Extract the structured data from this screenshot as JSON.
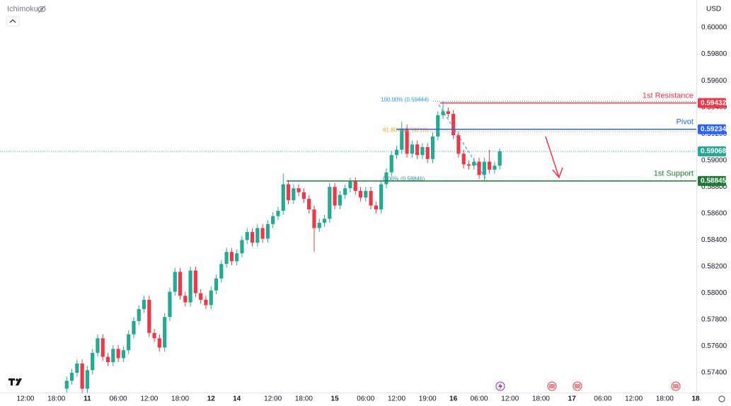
{
  "chart_data": {
    "type": "candlestick",
    "indicator": "Ichimoku",
    "currency": "USD",
    "up_color": "#22ab94",
    "down_color": "#f23645",
    "xlim": [
      -12.94,
      122.13
    ],
    "ylim": [
      0.57251,
      0.60208
    ],
    "xticks": [
      {
        "value": -8,
        "label": "12:00"
      },
      {
        "value": -2,
        "label": "18:00"
      },
      {
        "value": 4,
        "label": "11"
      },
      {
        "value": 10,
        "label": "06:00"
      },
      {
        "value": 16,
        "label": "12:00"
      },
      {
        "value": 22,
        "label": "18:00"
      },
      {
        "value": 28,
        "label": "12"
      },
      {
        "value": 33,
        "label": "14"
      },
      {
        "value": 40,
        "label": "12:00"
      },
      {
        "value": 46,
        "label": "18:00"
      },
      {
        "value": 52,
        "label": "15"
      },
      {
        "value": 58,
        "label": "06:00"
      },
      {
        "value": 64,
        "label": "12:00"
      },
      {
        "value": 70,
        "label": "19:00"
      },
      {
        "value": 75,
        "label": "16"
      },
      {
        "value": 80,
        "label": "06:00"
      },
      {
        "value": 86,
        "label": "12:00"
      },
      {
        "value": 92,
        "label": "18:00"
      },
      {
        "value": 98,
        "label": "17"
      },
      {
        "value": 104,
        "label": "06:00"
      },
      {
        "value": 110,
        "label": "12:00"
      },
      {
        "value": 116,
        "label": "18:00"
      },
      {
        "value": 122,
        "label": "18"
      }
    ],
    "yticks": [
      {
        "value": 0.6,
        "label": "0.60000"
      },
      {
        "value": 0.598,
        "label": "0.59800"
      },
      {
        "value": 0.596,
        "label": "0.59600"
      },
      {
        "value": 0.594,
        "label": "0.59400"
      },
      {
        "value": 0.592,
        "label": "0.59200"
      },
      {
        "value": 0.59,
        "label": "0.59000"
      },
      {
        "value": 0.588,
        "label": "0.58800"
      },
      {
        "value": 0.586,
        "label": "0.58600"
      },
      {
        "value": 0.584,
        "label": "0.58400"
      },
      {
        "value": 0.582,
        "label": "0.58200"
      },
      {
        "value": 0.58,
        "label": "0.58000"
      },
      {
        "value": 0.578,
        "label": "0.57800"
      },
      {
        "value": 0.576,
        "label": "0.57600"
      },
      {
        "value": 0.574,
        "label": "0.57400"
      }
    ],
    "candles": {
      "open": [
        0.5728,
        0.5734,
        0.574,
        0.5747,
        0.5728,
        0.5742,
        0.5755,
        0.5766,
        0.5752,
        0.5748,
        0.5758,
        0.5751,
        0.5757,
        0.5769,
        0.5779,
        0.5788,
        0.5795,
        0.577,
        0.5766,
        0.5759,
        0.5782,
        0.5801,
        0.5816,
        0.5798,
        0.5793,
        0.5817,
        0.58,
        0.5795,
        0.5791,
        0.5802,
        0.5811,
        0.5822,
        0.5831,
        0.5824,
        0.583,
        0.584,
        0.5846,
        0.5838,
        0.5849,
        0.5841,
        0.5852,
        0.5858,
        0.5862,
        0.5882,
        0.587,
        0.5879,
        0.5876,
        0.5871,
        0.5863,
        0.5849,
        0.5853,
        0.5856,
        0.588,
        0.5866,
        0.5874,
        0.5879,
        0.5884,
        0.5877,
        0.5872,
        0.5877,
        0.5866,
        0.5863,
        0.5882,
        0.5891,
        0.5904,
        0.5908,
        0.5924,
        0.5905,
        0.5912,
        0.5904,
        0.591,
        0.5901,
        0.5918,
        0.5934,
        0.5937,
        0.5935,
        0.5919,
        0.5905,
        0.5897,
        0.5896,
        0.5899,
        0.5889,
        0.5899,
        0.5893,
        0.5896
      ],
      "high": [
        0.5737,
        0.5743,
        0.575,
        0.575,
        0.5745,
        0.5758,
        0.5769,
        0.5769,
        0.5755,
        0.5761,
        0.5761,
        0.576,
        0.5772,
        0.5782,
        0.5791,
        0.5798,
        0.5798,
        0.5773,
        0.5769,
        0.5785,
        0.5804,
        0.5819,
        0.5819,
        0.5801,
        0.582,
        0.582,
        0.5803,
        0.5798,
        0.5805,
        0.5814,
        0.5825,
        0.5834,
        0.5834,
        0.5833,
        0.5843,
        0.5849,
        0.5849,
        0.5852,
        0.5852,
        0.5855,
        0.5861,
        0.5865,
        0.589,
        0.5885,
        0.5882,
        0.5882,
        0.5879,
        0.5874,
        0.5866,
        0.5856,
        0.5859,
        0.5883,
        0.5883,
        0.5877,
        0.5882,
        0.5887,
        0.5887,
        0.588,
        0.588,
        0.588,
        0.5869,
        0.5885,
        0.5894,
        0.5907,
        0.5911,
        0.5929,
        0.5927,
        0.5915,
        0.5915,
        0.5913,
        0.5913,
        0.5921,
        0.5937,
        0.59444,
        0.594,
        0.5938,
        0.5922,
        0.5908,
        0.59,
        0.5902,
        0.5902,
        0.5902,
        0.5908,
        0.5899,
        0.5909
      ],
      "low": [
        0.5725,
        0.5731,
        0.5737,
        0.5725,
        0.5725,
        0.5739,
        0.5752,
        0.5749,
        0.5745,
        0.5745,
        0.5748,
        0.5748,
        0.5754,
        0.5766,
        0.5776,
        0.5785,
        0.5767,
        0.5763,
        0.5756,
        0.5756,
        0.5779,
        0.5798,
        0.5795,
        0.579,
        0.579,
        0.5797,
        0.5792,
        0.5788,
        0.5788,
        0.5799,
        0.5808,
        0.5819,
        0.5821,
        0.5821,
        0.5827,
        0.5837,
        0.5835,
        0.5835,
        0.5838,
        0.5838,
        0.5849,
        0.5855,
        0.5859,
        0.5867,
        0.5867,
        0.5873,
        0.5868,
        0.586,
        0.5831,
        0.5846,
        0.585,
        0.5853,
        0.5863,
        0.5863,
        0.5871,
        0.5876,
        0.5874,
        0.5869,
        0.5869,
        0.5863,
        0.586,
        0.586,
        0.5879,
        0.5888,
        0.5901,
        0.5905,
        0.5902,
        0.5902,
        0.5901,
        0.5901,
        0.5898,
        0.5898,
        0.5915,
        0.5931,
        0.5932,
        0.5916,
        0.5902,
        0.5894,
        0.5893,
        0.5893,
        0.5886,
        0.5884,
        0.589,
        0.589,
        0.5893
      ],
      "close": [
        0.5734,
        0.574,
        0.5747,
        0.5728,
        0.5742,
        0.5755,
        0.5766,
        0.5752,
        0.5748,
        0.5758,
        0.5751,
        0.5757,
        0.5769,
        0.5779,
        0.5788,
        0.5795,
        0.577,
        0.5766,
        0.5759,
        0.5782,
        0.5801,
        0.5816,
        0.5798,
        0.5793,
        0.5817,
        0.58,
        0.5795,
        0.5791,
        0.5802,
        0.5811,
        0.5822,
        0.5831,
        0.5824,
        0.583,
        0.584,
        0.5846,
        0.5838,
        0.5849,
        0.5841,
        0.5852,
        0.5858,
        0.5862,
        0.5882,
        0.587,
        0.5879,
        0.5876,
        0.5871,
        0.5863,
        0.5849,
        0.5853,
        0.5856,
        0.588,
        0.5866,
        0.5874,
        0.5879,
        0.5884,
        0.5877,
        0.5872,
        0.5877,
        0.5866,
        0.5863,
        0.5882,
        0.5891,
        0.5904,
        0.5908,
        0.5924,
        0.5905,
        0.5912,
        0.5904,
        0.591,
        0.5901,
        0.5918,
        0.5934,
        0.5937,
        0.5935,
        0.5919,
        0.5905,
        0.5897,
        0.5896,
        0.5899,
        0.5889,
        0.5899,
        0.5893,
        0.5896,
        0.59068
      ]
    },
    "levels": [
      {
        "name": "1st Resistance",
        "value": 0.59432,
        "color": "#f23645"
      },
      {
        "name": "Pivot",
        "value": 0.59234,
        "color": "#2962ff"
      },
      {
        "name": "1st Support",
        "value": 0.58845,
        "color": "#1e7b34"
      }
    ],
    "fib": [
      {
        "label": "100.00% (0.59444)",
        "value": 0.59444,
        "color": "#2196f3"
      },
      {
        "label": "61.80% (0.59216)",
        "value": 0.59216,
        "color": "#f0a020"
      },
      {
        "label": "0.00% (0.58846)",
        "value": 0.58846,
        "color": "#2b8fa0"
      }
    ]
  }
}
